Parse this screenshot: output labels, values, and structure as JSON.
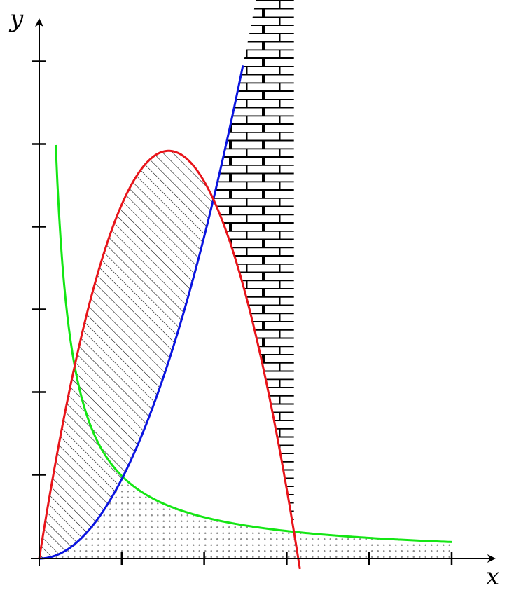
{
  "axes": {
    "x_label": "x",
    "y_label": "y",
    "x_range": [
      0,
      5
    ],
    "y_range": [
      0,
      6
    ],
    "x_ticks": [
      1,
      2,
      3,
      4,
      5
    ],
    "y_ticks": [
      1,
      2,
      3,
      4,
      5,
      6
    ],
    "arrow_heads": true
  },
  "curves": [
    {
      "id": "red",
      "type": "downward parabola through origin",
      "color": "#e8141a",
      "samples": [
        [
          0,
          0
        ],
        [
          0.5,
          2.39
        ],
        [
          1,
          3.97
        ],
        [
          1.5,
          4.91
        ],
        [
          1.565,
          5.0
        ],
        [
          2,
          4.7
        ],
        [
          2.5,
          3.4
        ],
        [
          3,
          0.9
        ],
        [
          3.15,
          -0.08
        ]
      ]
    },
    {
      "id": "blue",
      "type": "increasing power curve from origin",
      "color": "#0a14e0",
      "samples": [
        [
          0,
          0
        ],
        [
          0.5,
          0.2
        ],
        [
          1,
          0.96
        ],
        [
          1.5,
          2.3
        ],
        [
          2,
          4.3
        ],
        [
          2.47,
          6.0
        ]
      ]
    },
    {
      "id": "green",
      "type": "reciprocal curve",
      "color": "#14e614",
      "samples": [
        [
          0.2,
          5.0
        ],
        [
          0.5,
          2.0
        ],
        [
          1,
          1.0
        ],
        [
          2,
          0.5
        ],
        [
          3,
          0.33
        ],
        [
          4,
          0.25
        ],
        [
          5,
          0.2
        ]
      ]
    }
  ],
  "regions": [
    {
      "id": "hatched",
      "pattern": "diagonal lines",
      "between": [
        "blue",
        "red"
      ]
    },
    {
      "id": "bricks",
      "pattern": "bricks",
      "between": [
        "red",
        "blue"
      ]
    },
    {
      "id": "dots",
      "pattern": "dots",
      "under": [
        "blue",
        "green"
      ]
    }
  ],
  "colors": {
    "axis": "#000000",
    "pattern": "#000000",
    "dots": "#8c8c8c"
  }
}
